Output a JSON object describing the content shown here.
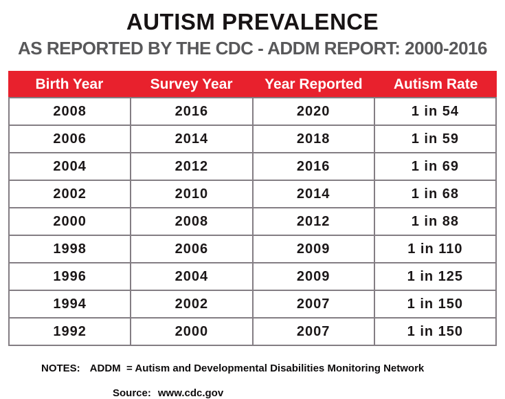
{
  "header": {
    "title": "AUTISM PREVALENCE",
    "subtitle": "AS REPORTED BY THE CDC - ADDM REPORT: 2000-2016"
  },
  "chart_data": {
    "type": "table",
    "title": "AUTISM PREVALENCE",
    "subtitle": "AS REPORTED BY THE CDC - ADDM REPORT: 2000-2016",
    "columns": [
      "Birth Year",
      "Survey Year",
      "Year Reported",
      "Autism Rate"
    ],
    "rows": [
      [
        "2008",
        "2016",
        "2020",
        "1 in 54"
      ],
      [
        "2006",
        "2014",
        "2018",
        "1 in 59"
      ],
      [
        "2004",
        "2012",
        "2016",
        "1 in 69"
      ],
      [
        "2002",
        "2010",
        "2014",
        "1 in 68"
      ],
      [
        "2000",
        "2008",
        "2012",
        "1 in 88"
      ],
      [
        "1998",
        "2006",
        "2009",
        "1 in 110"
      ],
      [
        "1996",
        "2004",
        "2009",
        "1 in 125"
      ],
      [
        "1994",
        "2002",
        "2007",
        "1 in 150"
      ],
      [
        "1992",
        "2000",
        "2007",
        "1 in 150"
      ]
    ]
  },
  "notes": {
    "label": "NOTES:",
    "addm_definition": "ADDM  = Autism and Developmental Disabilities Monitoring Network",
    "source_label": "Source:",
    "source_value": "www.cdc.gov"
  },
  "colors": {
    "title": "#171314",
    "subtitle": "#58585A",
    "header_bg": "#E8212D",
    "header_text": "#FFFFFF",
    "grid": "#837D83",
    "cell_text": "#1B1718"
  }
}
